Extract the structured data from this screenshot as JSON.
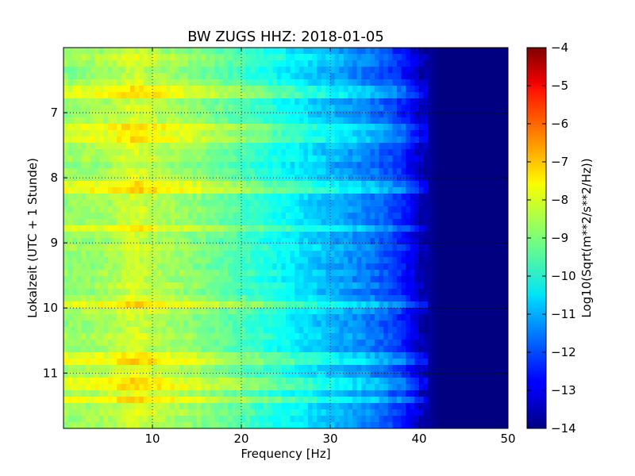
{
  "chart_data": {
    "type": "heatmap",
    "title": "BW ZUGS HHZ: 2018-01-05",
    "xlabel": "Frequency [Hz]",
    "ylabel": "Lokalzeit (UTC + 1 Stunde)",
    "xlim": [
      0,
      50
    ],
    "ylim": [
      6.0,
      11.85
    ],
    "y_inverted": true,
    "x_ticks": [
      10,
      20,
      30,
      40,
      50
    ],
    "y_ticks": [
      7,
      8,
      9,
      10,
      11
    ],
    "grid": true,
    "colormap": "jet",
    "colorbar": {
      "label": "Log10(Sqrt(m**2/s**2/Hz))",
      "range": [
        -14,
        -4
      ],
      "ticks": [
        -4,
        -5,
        -6,
        -7,
        -8,
        -9,
        -10,
        -11,
        -12,
        -13,
        -14
      ]
    },
    "spectral_profile": {
      "frequency_hz": [
        0,
        5,
        8,
        10,
        15,
        20,
        25,
        30,
        35,
        38,
        40,
        42,
        45,
        50
      ],
      "log10_amplitude": [
        -8.8,
        -8.6,
        -8.1,
        -8.4,
        -8.9,
        -9.5,
        -10.2,
        -10.9,
        -11.6,
        -12.3,
        -13.3,
        -14,
        -14,
        -14
      ]
    },
    "bright_bands_time": [
      6.7,
      7.2,
      7.35,
      8.15,
      8.8,
      9.95,
      10.77,
      11.15,
      11.4
    ]
  }
}
